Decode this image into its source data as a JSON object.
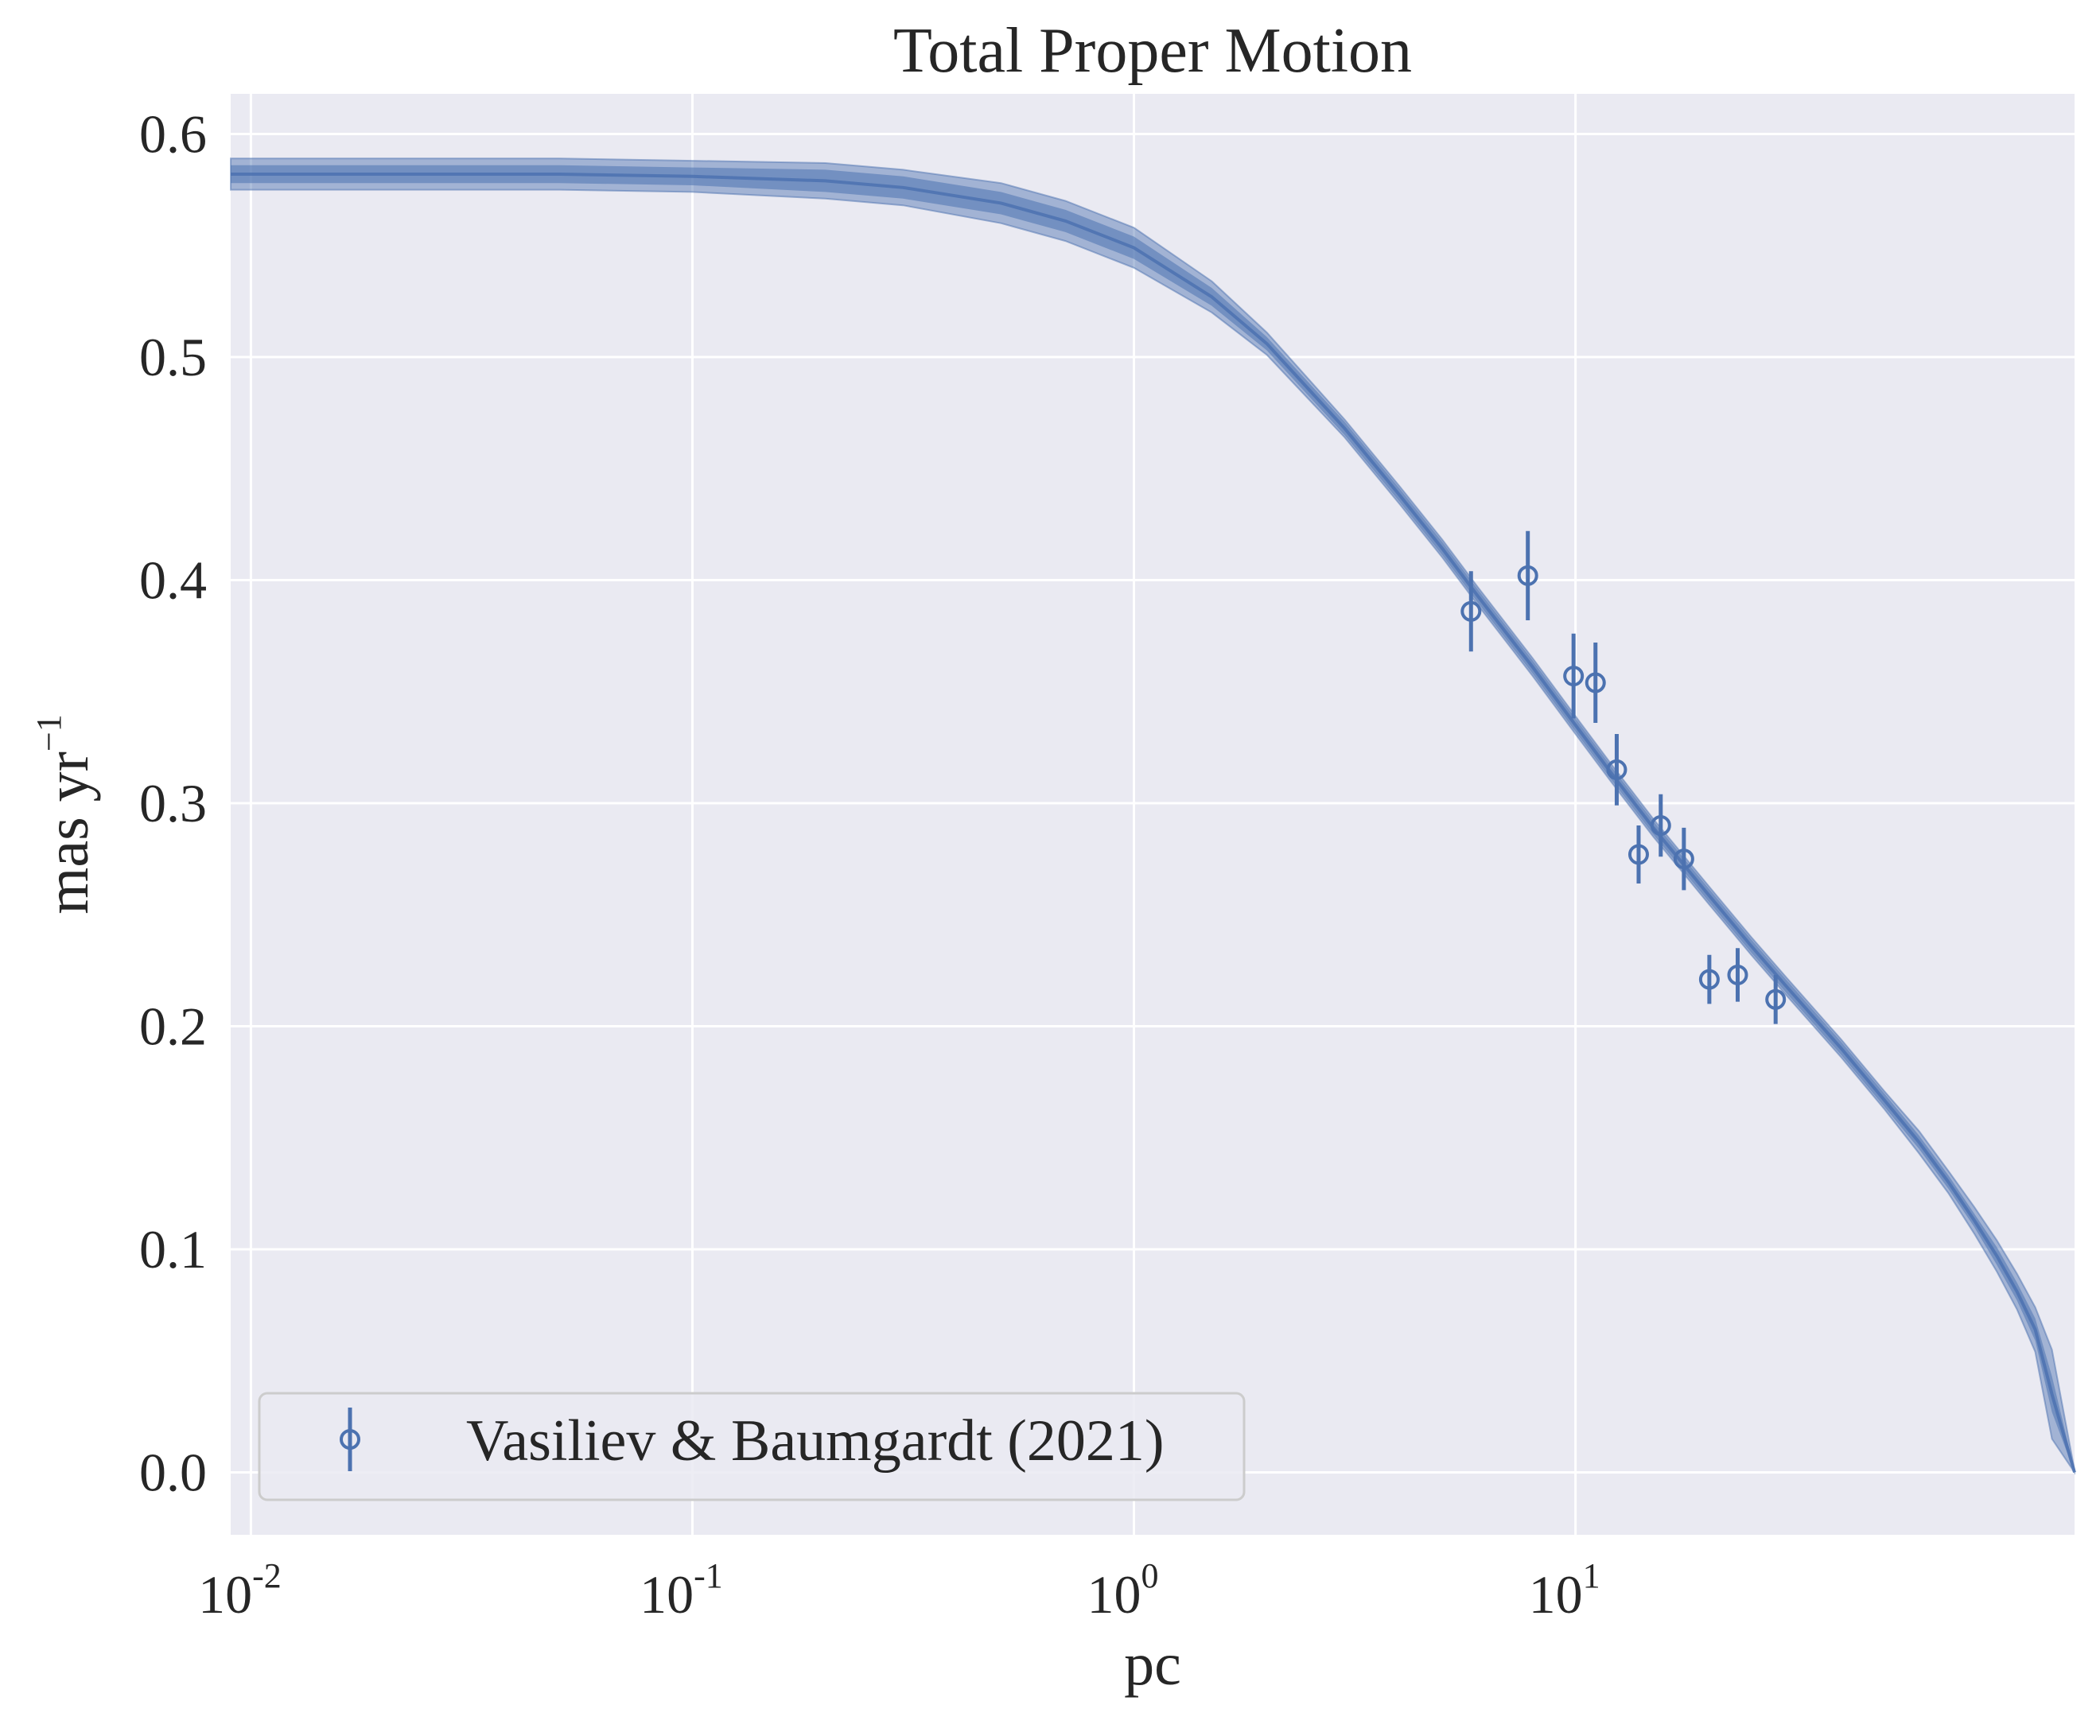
{
  "chart_data": {
    "type": "line",
    "title": "Total Proper Motion",
    "xlabel": "pc",
    "ylabel": "mas yr",
    "ylabel_exp": "−1",
    "x_scale": "log",
    "xlim": [
      0.009,
      135
    ],
    "ylim": [
      -0.028,
      0.618
    ],
    "grid": true,
    "x_ticks": [
      {
        "value": 0.01,
        "base": "10",
        "exp": "-2"
      },
      {
        "value": 0.1,
        "base": "10",
        "exp": "-1"
      },
      {
        "value": 1,
        "base": "10",
        "exp": "0"
      },
      {
        "value": 10,
        "base": "10",
        "exp": "1"
      }
    ],
    "y_ticks": [
      {
        "value": 0.0,
        "label": "0.0"
      },
      {
        "value": 0.1,
        "label": "0.1"
      },
      {
        "value": 0.2,
        "label": "0.2"
      },
      {
        "value": 0.3,
        "label": "0.3"
      },
      {
        "value": 0.4,
        "label": "0.4"
      },
      {
        "value": 0.5,
        "label": "0.5"
      },
      {
        "value": 0.6,
        "label": "0.6"
      }
    ],
    "model": {
      "x": [
        0.009,
        0.02,
        0.05,
        0.1,
        0.2,
        0.3,
        0.5,
        0.7,
        1.0,
        1.5,
        2.0,
        3.0,
        4.0,
        5.0,
        6.0,
        8.0,
        10,
        12,
        15,
        20,
        25,
        30,
        40,
        50,
        60,
        70,
        80,
        90,
        100,
        110,
        120,
        135
      ],
      "y": [
        0.582,
        0.582,
        0.582,
        0.581,
        0.579,
        0.576,
        0.569,
        0.561,
        0.549,
        0.527,
        0.506,
        0.468,
        0.438,
        0.414,
        0.393,
        0.361,
        0.335,
        0.314,
        0.289,
        0.259,
        0.236,
        0.218,
        0.19,
        0.167,
        0.148,
        0.13,
        0.113,
        0.097,
        0.081,
        0.064,
        0.035,
        0.0
      ],
      "band_inner": [
        0.004,
        0.004,
        0.004,
        0.004,
        0.005,
        0.005,
        0.005,
        0.005,
        0.005,
        0.004,
        0.003,
        0.003,
        0.003,
        0.003,
        0.003,
        0.003,
        0.003,
        0.003,
        0.003,
        0.003,
        0.003,
        0.003,
        0.003,
        0.003,
        0.003,
        0.003,
        0.003,
        0.004,
        0.004,
        0.005,
        0.008,
        0.001
      ],
      "band_outer": [
        0.007,
        0.007,
        0.007,
        0.007,
        0.008,
        0.008,
        0.009,
        0.009,
        0.009,
        0.007,
        0.005,
        0.004,
        0.004,
        0.004,
        0.004,
        0.004,
        0.004,
        0.004,
        0.004,
        0.004,
        0.004,
        0.004,
        0.004,
        0.004,
        0.005,
        0.005,
        0.006,
        0.007,
        0.008,
        0.01,
        0.02,
        0.001
      ]
    },
    "series": [
      {
        "name": "Vasiliev & Baumgardt (2021)",
        "marker": "open-circle",
        "x": [
          5.8,
          7.8,
          9.9,
          11.1,
          12.4,
          13.9,
          15.6,
          17.6,
          20.1,
          23.3,
          28.4
        ],
        "y": [
          0.386,
          0.402,
          0.357,
          0.354,
          0.315,
          0.277,
          0.29,
          0.275,
          0.221,
          0.223,
          0.212
        ],
        "yerr": [
          0.018,
          0.02,
          0.019,
          0.018,
          0.016,
          0.013,
          0.014,
          0.014,
          0.011,
          0.012,
          0.011
        ]
      }
    ],
    "legend_position": "lower-left",
    "colors": {
      "line": "#4c72b0",
      "axes_bg": "#eaeaf2",
      "grid": "#ffffff"
    }
  }
}
